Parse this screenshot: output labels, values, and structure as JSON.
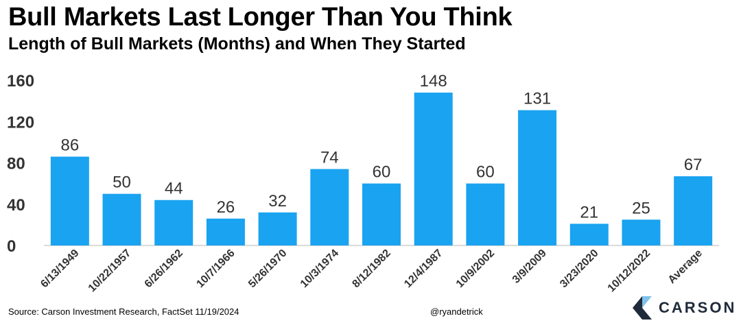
{
  "header": {
    "title": "Bull Markets Last Longer Than You Think",
    "subtitle": "Length of Bull Markets (Months) and When They Started"
  },
  "footer": {
    "source": "Source: Carson Investment Research, FactSet 11/19/2024",
    "handle": "@ryandetrick",
    "logo_text": "CARSON"
  },
  "colors": {
    "bar": "#1aa3f0",
    "axis": "#cfcfcf",
    "text": "#000000",
    "label": "#333333",
    "logo_dark": "#1f2a3a",
    "logo_light": "#7fc3ea"
  },
  "chart_data": {
    "type": "bar",
    "title": "Bull Markets Last Longer Than You Think",
    "subtitle": "Length of Bull Markets (Months) and When They Started",
    "categories": [
      "6/13/1949",
      "10/22/1957",
      "6/26/1962",
      "10/7/1966",
      "5/26/1970",
      "10/3/1974",
      "8/12/1982",
      "12/4/1987",
      "10/9/2002",
      "3/9/2009",
      "3/23/2020",
      "10/12/2022",
      "Average"
    ],
    "values": [
      86,
      50,
      44,
      26,
      32,
      74,
      60,
      148,
      60,
      131,
      21,
      25,
      67
    ],
    "ylim": [
      0,
      160
    ],
    "yticks": [
      0,
      40,
      80,
      120,
      160
    ],
    "grid": false,
    "legend": "none",
    "data_labels": true
  }
}
